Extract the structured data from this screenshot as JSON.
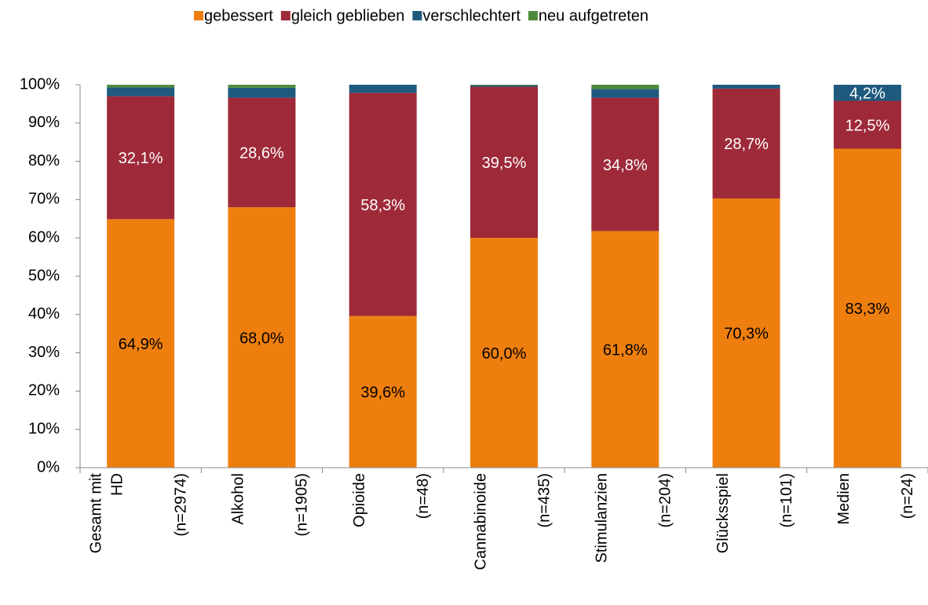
{
  "chart_data": {
    "type": "stacked_bar",
    "categories": [
      [
        "Gesamt mit",
        "HD",
        "(n=2974)"
      ],
      [
        "Alkohol",
        "(n=1905)"
      ],
      [
        "Opioide",
        "(n=48)"
      ],
      [
        "Cannabinoide",
        "(n=435)"
      ],
      [
        "Stimulanzien",
        "(n=204)"
      ],
      [
        "Glücksspiel",
        "(n=101)"
      ],
      [
        "Medien",
        "(n=24)"
      ]
    ],
    "series": [
      {
        "name": "gebessert",
        "color": "#ee7f0e",
        "label_color": "#000000",
        "values": [
          64.9,
          68.0,
          39.6,
          60.0,
          61.8,
          70.3,
          83.3
        ],
        "value_labels": [
          "64,9%",
          "68,0%",
          "39,6%",
          "60,0%",
          "61,8%",
          "70,3%",
          "83,3%"
        ]
      },
      {
        "name": "gleich geblieben",
        "color": "#9e2a39",
        "label_color": "#ffffff",
        "values": [
          32.1,
          28.6,
          58.3,
          39.5,
          34.8,
          28.7,
          12.5
        ],
        "value_labels": [
          "32,1%",
          "28,6%",
          "58,3%",
          "39,5%",
          "34,8%",
          "28,7%",
          "12,5%"
        ]
      },
      {
        "name": "verschlechtert",
        "color": "#1f5a7e",
        "label_color": "#ffffff",
        "values": [
          2.3,
          2.6,
          2.1,
          0.3,
          2.3,
          1.0,
          4.2
        ],
        "value_labels": [
          null,
          null,
          null,
          null,
          null,
          null,
          "4,2%"
        ]
      },
      {
        "name": "neu aufgetreten",
        "color": "#4e8a3b",
        "values": [
          0.7,
          0.8,
          0,
          0.2,
          1.1,
          0,
          0
        ]
      }
    ],
    "ylim": [
      0,
      100
    ],
    "yticks": [
      {
        "value": 0,
        "label": "0%"
      },
      {
        "value": 10,
        "label": "10%"
      },
      {
        "value": 20,
        "label": "20%"
      },
      {
        "value": 30,
        "label": "30%"
      },
      {
        "value": 40,
        "label": "40%"
      },
      {
        "value": 50,
        "label": "50%"
      },
      {
        "value": 60,
        "label": "60%"
      },
      {
        "value": 70,
        "label": "70%"
      },
      {
        "value": 80,
        "label": "80%"
      },
      {
        "value": 90,
        "label": "90%"
      },
      {
        "value": 100,
        "label": "100%"
      }
    ],
    "legend": "top"
  }
}
